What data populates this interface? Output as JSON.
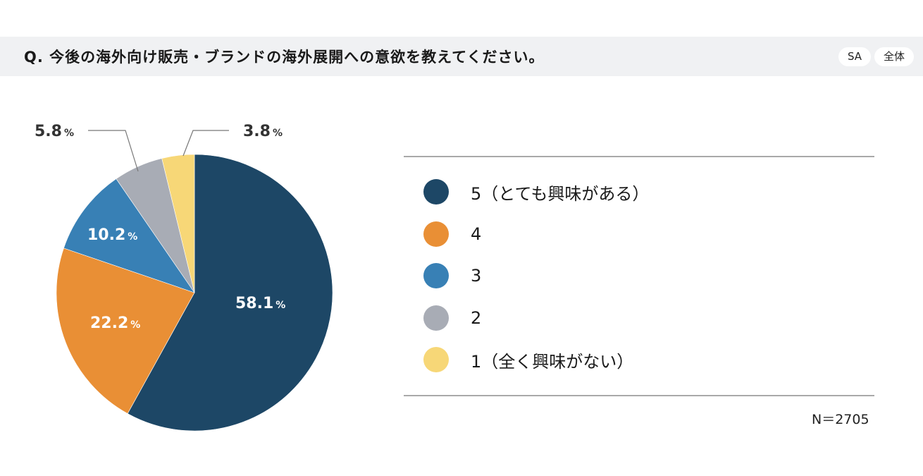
{
  "header": {
    "question": "Q. 今後の海外向け販売・ブランドの海外展開への意欲を教えてください。",
    "badges": [
      "SA",
      "全体"
    ]
  },
  "chart_data": {
    "type": "pie",
    "title": "Q. 今後の海外向け販売・ブランドの海外展開への意欲を教えてください。",
    "categories": [
      "5（とても興味がある）",
      "4",
      "3",
      "2",
      "1（全く興味がない）"
    ],
    "values": [
      58.1,
      22.2,
      10.2,
      5.8,
      3.8
    ],
    "unit": "%",
    "colors": [
      "#1d4766",
      "#e98f35",
      "#3880b5",
      "#a8acb5",
      "#f7d777"
    ],
    "legend_position": "right",
    "start_angle": "12 o'clock, clockwise",
    "sample_size": "N＝2705"
  },
  "labels": {
    "slice_5": "58.1",
    "slice_4": "22.2",
    "slice_3": "10.2",
    "slice_2": "5.8",
    "slice_1": "3.8",
    "pct": "%"
  },
  "legend": {
    "items": [
      {
        "label": "5（とても興味がある）",
        "color": "#1d4766"
      },
      {
        "label": "4",
        "color": "#e98f35"
      },
      {
        "label": "3",
        "color": "#3880b5"
      },
      {
        "label": "2",
        "color": "#a8acb5"
      },
      {
        "label": "1（全く興味がない）",
        "color": "#f7d777"
      }
    ]
  },
  "footer": {
    "n": "N＝2705"
  }
}
